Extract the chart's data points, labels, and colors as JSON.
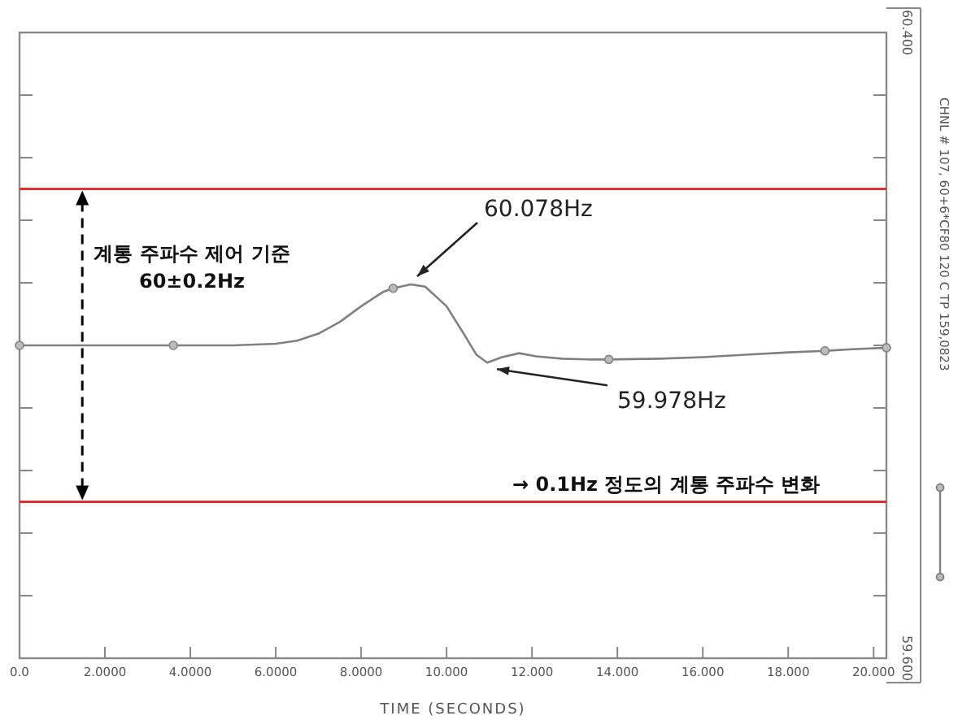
{
  "chart_data": {
    "type": "line",
    "xlabel": "TIME (SECONDS)",
    "xlim": [
      0,
      20.3
    ],
    "xticks": [
      {
        "value": 0,
        "label": "0.0"
      },
      {
        "value": 2,
        "label": "2.0000"
      },
      {
        "value": 4,
        "label": "4.0000"
      },
      {
        "value": 6,
        "label": "6.0000"
      },
      {
        "value": 8,
        "label": "8.0000"
      },
      {
        "value": 10,
        "label": "10.000"
      },
      {
        "value": 12,
        "label": "12.000"
      },
      {
        "value": 14,
        "label": "14.000"
      },
      {
        "value": 16,
        "label": "16.000"
      },
      {
        "value": 18,
        "label": "18.000"
      },
      {
        "value": 20,
        "label": "20.000"
      }
    ],
    "ylim": [
      59.6,
      60.4
    ],
    "yticks": [
      {
        "value": 60.4,
        "label": "60.400"
      },
      {
        "value": 60.32,
        "label": null
      },
      {
        "value": 60.24,
        "label": null
      },
      {
        "value": 60.16,
        "label": null
      },
      {
        "value": 60.08,
        "label": null
      },
      {
        "value": 60.0,
        "label": null
      },
      {
        "value": 59.92,
        "label": null
      },
      {
        "value": 59.84,
        "label": null
      },
      {
        "value": 59.76,
        "label": null
      },
      {
        "value": 59.68,
        "label": null
      },
      {
        "value": 59.6,
        "label": "59.600"
      }
    ],
    "grid": false,
    "legend": "right",
    "series": [
      {
        "name": "CHNL # 107, 60+6*CF80  120 C  TP  159,0823",
        "color": "#808080",
        "line_style": "solid",
        "x": [
          0,
          1,
          2,
          3,
          3.6,
          4,
          5,
          6,
          6.5,
          7,
          7.5,
          8,
          8.5,
          8.75,
          9.16,
          9.5,
          10,
          10.4,
          10.7,
          10.95,
          11.3,
          11.7,
          12.1,
          12.7,
          13.3,
          13.8,
          15,
          16,
          17,
          18,
          18.86,
          19.5,
          20.3
        ],
        "values": [
          60,
          60,
          60,
          60,
          60,
          60,
          60,
          60.002,
          60.006,
          60.015,
          60.03,
          60.05,
          60.068,
          60.073,
          60.078,
          60.075,
          60.05,
          60.015,
          59.988,
          59.978,
          59.985,
          59.99,
          59.986,
          59.983,
          59.982,
          59.982,
          59.983,
          59.985,
          59.988,
          59.991,
          59.993,
          59.995,
          59.997
        ]
      },
      {
        "type": "scatter",
        "marker": "circle",
        "color": "#808080",
        "x": [
          0,
          3.6,
          8.75,
          13.8,
          18.86,
          20.3
        ],
        "values": [
          60,
          60,
          60.073,
          59.982,
          59.993,
          59.997
        ]
      }
    ],
    "ref_lines": [
      {
        "axis": "y",
        "value": 60.2,
        "color": "#e03030"
      },
      {
        "axis": "y",
        "value": 59.8,
        "color": "#e03030"
      }
    ],
    "annotations": [
      {
        "text": "60.078Hz",
        "x": 9.16,
        "y": 60.078
      },
      {
        "text": "59.978Hz",
        "x": 10.95,
        "y": 59.978
      },
      "계통 주파수 제어 기준\n60±0.2Hz",
      "→ 0.1Hz 정도의 계통 주파수 변화"
    ]
  }
}
